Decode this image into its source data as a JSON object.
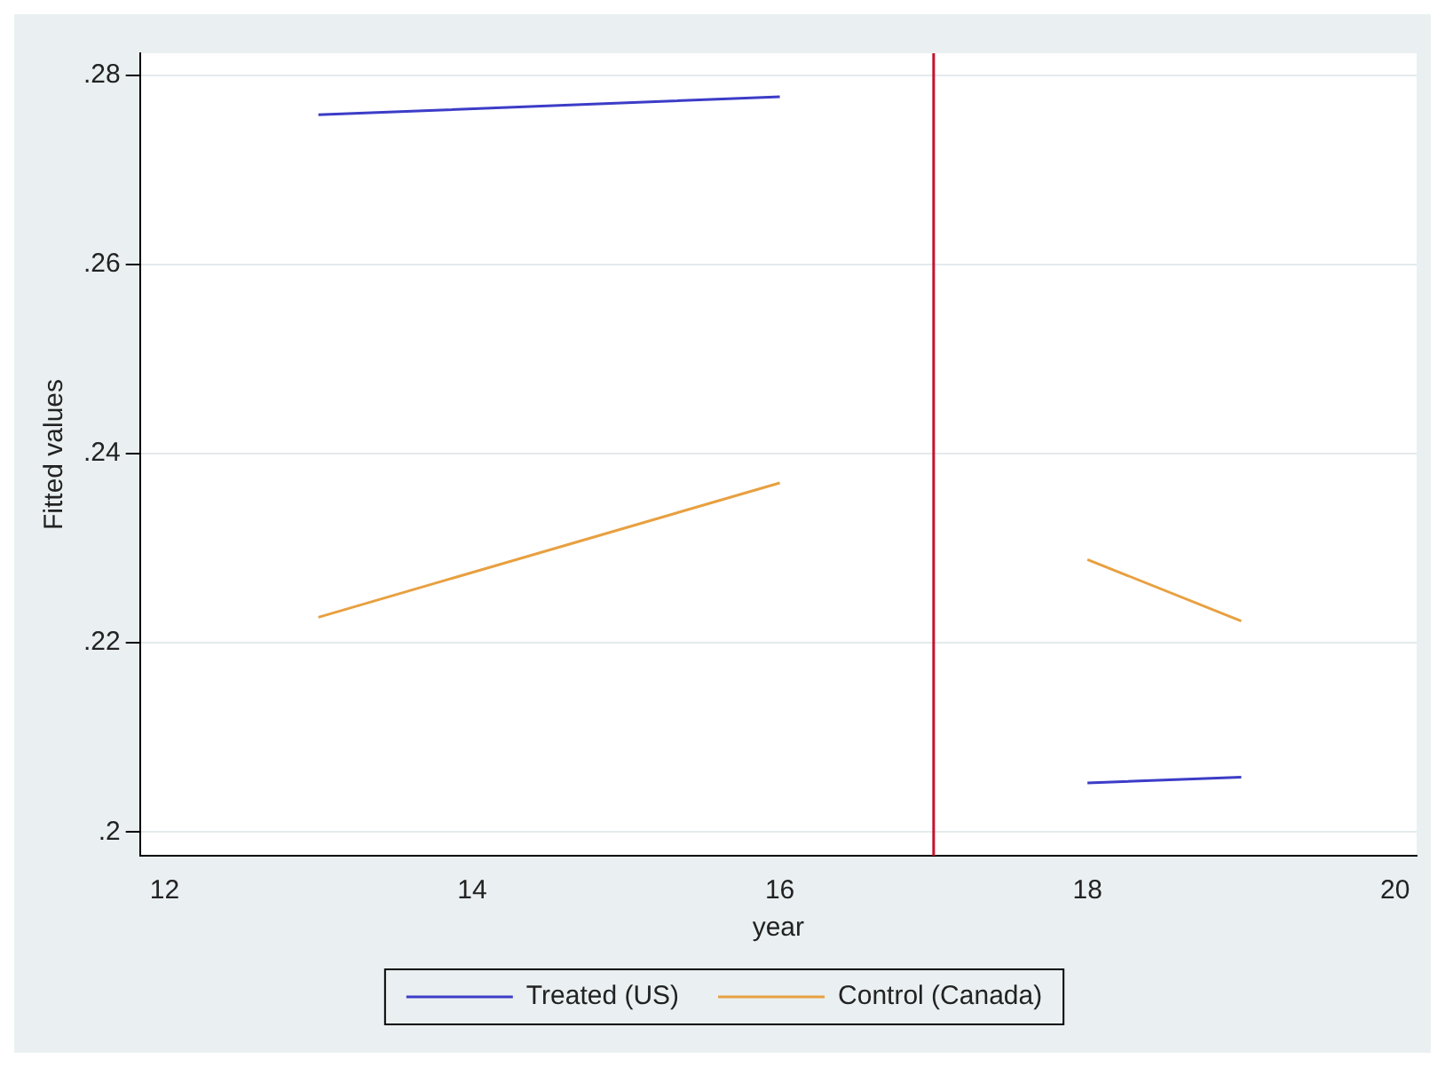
{
  "chart_data": {
    "type": "line",
    "xlabel": "year",
    "ylabel": "Fitted values",
    "x": [
      13,
      16,
      17,
      18,
      19
    ],
    "series": [
      {
        "name": "Treated (US)",
        "color": "#3c3cc8",
        "values": [
          0.2758,
          0.2777,
          null,
          0.2052,
          0.2058
        ]
      },
      {
        "name": "Control (Canada)",
        "color": "#e8a040",
        "values": [
          0.2227,
          0.2369,
          null,
          0.2288,
          0.2223
        ]
      }
    ],
    "xlim": [
      11.84,
      20.14
    ],
    "xticks": [
      12,
      14,
      16,
      18,
      20
    ],
    "ylim": [
      0.1975,
      0.2823
    ],
    "yticks": [
      {
        "value": 0.2,
        "label": ".2"
      },
      {
        "value": 0.22,
        "label": ".22"
      },
      {
        "value": 0.24,
        "label": ".24"
      },
      {
        "value": 0.26,
        "label": ".26"
      },
      {
        "value": 0.28,
        "label": ".28"
      }
    ],
    "ref_lines": [
      {
        "axis": "x",
        "value": 17,
        "color": "#c8102e"
      }
    ],
    "grid": "y",
    "legend": "bottom",
    "marker": "none",
    "line_style": "solid"
  }
}
